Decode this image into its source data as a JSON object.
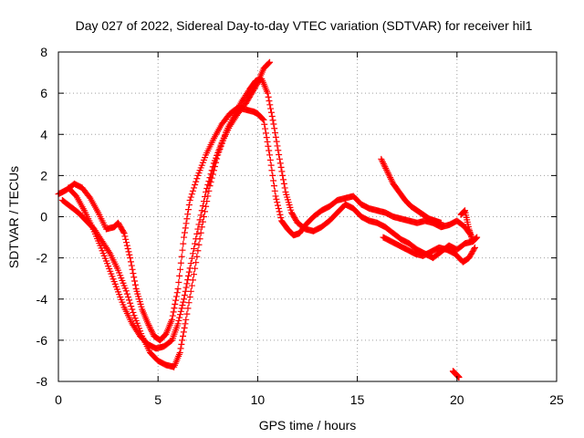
{
  "chart_data": {
    "type": "scatter",
    "title": "Day 027 of 2022, Sidereal Day-to-day VTEC variation (SDTVAR) for receiver hil1",
    "xlabel": "GPS time / hours",
    "ylabel": "SDTVAR / TECUs",
    "xlim": [
      0,
      25
    ],
    "ylim": [
      -8,
      8
    ],
    "xticks": [
      0,
      5,
      10,
      15,
      20,
      25
    ],
    "yticks": [
      -8,
      -6,
      -4,
      -2,
      0,
      2,
      4,
      6,
      8
    ],
    "xtick_labels": [
      "0",
      "5",
      "10",
      "15",
      "20",
      "25"
    ],
    "ytick_labels": [
      "-8",
      "-6",
      "-4",
      "-2",
      "0",
      "2",
      "4",
      "6",
      "8"
    ],
    "grid": true,
    "marker": "+",
    "color": "#ff0000",
    "series": [
      {
        "name": "track-a",
        "x": [
          0.0,
          0.4,
          0.8,
          1.2,
          1.6,
          2.0,
          2.4,
          2.8,
          3.0,
          3.3,
          3.6,
          3.9,
          4.2,
          4.5,
          4.8,
          5.1,
          5.4,
          5.7,
          6.0,
          6.3,
          6.6,
          7.0,
          7.4,
          7.8,
          8.2,
          8.6,
          9.0,
          9.4,
          9.8,
          10.0,
          10.3,
          10.6,
          10.9,
          11.2,
          11.5,
          11.8,
          12.1,
          12.4,
          12.8,
          13.2,
          13.6,
          14.0,
          14.4,
          14.8,
          15.2,
          15.6,
          16.0,
          16.4,
          16.8,
          17.2,
          17.6,
          18.0,
          18.4,
          18.8,
          19.2,
          19.6,
          20.0,
          20.4,
          20.7
        ],
        "y": [
          1.1,
          1.3,
          1.6,
          1.4,
          0.9,
          0.2,
          -0.6,
          -0.5,
          -0.3,
          -0.8,
          -2.0,
          -3.5,
          -4.5,
          -5.2,
          -5.8,
          -6.0,
          -5.7,
          -5.0,
          -3.5,
          -1.0,
          0.8,
          2.0,
          3.0,
          3.8,
          4.5,
          5.0,
          5.3,
          5.2,
          5.1,
          5.0,
          4.7,
          3.0,
          1.0,
          -0.2,
          -0.6,
          -0.9,
          -0.8,
          -0.4,
          0.0,
          0.3,
          0.5,
          0.8,
          0.9,
          1.0,
          0.6,
          0.4,
          0.3,
          0.2,
          0.0,
          -0.1,
          -0.2,
          -0.3,
          -0.2,
          -0.3,
          -0.5,
          -0.4,
          -0.2,
          -0.5,
          -0.9
        ]
      },
      {
        "name": "track-b",
        "x": [
          0.2,
          0.6,
          1.0,
          1.4,
          1.8,
          2.2,
          2.6,
          3.0,
          3.4,
          3.8,
          4.2,
          4.6,
          5.0,
          5.4,
          5.8,
          6.1,
          6.4,
          6.8,
          7.2,
          7.6,
          8.0,
          8.4,
          8.8,
          9.2,
          9.6,
          9.9,
          10.2,
          10.5,
          10.8,
          11.1,
          11.4,
          11.7,
          12.0,
          12.4,
          12.8,
          13.2,
          13.6,
          14.0,
          14.4,
          14.8,
          15.2,
          15.6,
          16.0,
          16.4,
          16.8,
          17.2,
          17.6,
          18.0,
          18.4,
          18.8,
          19.2,
          19.6,
          20.0,
          20.4,
          20.8
        ],
        "y": [
          0.8,
          0.5,
          0.2,
          -0.2,
          -0.6,
          -1.2,
          -1.8,
          -2.6,
          -3.6,
          -4.8,
          -5.8,
          -6.6,
          -7.0,
          -7.2,
          -7.3,
          -6.6,
          -5.0,
          -2.8,
          -0.5,
          1.5,
          3.0,
          4.1,
          4.9,
          5.6,
          6.2,
          6.6,
          6.7,
          6.0,
          4.5,
          2.8,
          1.2,
          0.2,
          -0.3,
          -0.6,
          -0.7,
          -0.5,
          -0.2,
          0.2,
          0.6,
          0.4,
          0.0,
          -0.2,
          -0.3,
          -0.5,
          -0.8,
          -1.1,
          -1.3,
          -1.6,
          -1.8,
          -2.0,
          -1.7,
          -1.4,
          -1.6,
          -1.3,
          -1.2
        ]
      },
      {
        "name": "track-c",
        "x": [
          0.5,
          0.9,
          1.3,
          1.7,
          2.1,
          2.5,
          2.9,
          3.3,
          3.7,
          4.1,
          4.5,
          4.9,
          5.3,
          5.7,
          6.0,
          6.3,
          6.6,
          7.0,
          7.4,
          7.8,
          8.2,
          8.6,
          9.0,
          9.4,
          9.7,
          10.0,
          10.3,
          10.6
        ],
        "y": [
          1.4,
          1.0,
          0.3,
          -0.5,
          -1.4,
          -2.4,
          -3.4,
          -4.4,
          -5.2,
          -5.8,
          -6.2,
          -6.4,
          -6.3,
          -6.0,
          -5.2,
          -4.0,
          -2.5,
          -0.6,
          1.2,
          2.6,
          3.6,
          4.4,
          5.0,
          5.5,
          6.0,
          6.5,
          7.2,
          7.5
        ]
      },
      {
        "name": "track-d",
        "x": [
          16.2,
          16.5,
          16.8,
          17.1,
          17.4,
          17.7,
          18.0,
          18.3,
          18.6,
          18.9,
          19.2
        ],
        "y": [
          2.8,
          2.2,
          1.6,
          1.2,
          0.8,
          0.5,
          0.3,
          0.1,
          -0.1,
          -0.2,
          -0.3
        ]
      },
      {
        "name": "track-e",
        "x": [
          16.3,
          16.7,
          17.1,
          17.5,
          17.9,
          18.3,
          18.7,
          19.1,
          19.5,
          19.9,
          20.3,
          20.6,
          20.9
        ],
        "y": [
          -1.0,
          -1.2,
          -1.4,
          -1.6,
          -1.8,
          -1.9,
          -1.7,
          -1.5,
          -1.6,
          -1.8,
          -2.2,
          -2.0,
          -1.5
        ]
      },
      {
        "name": "track-f",
        "x": [
          19.8,
          19.9,
          20.0,
          20.1
        ],
        "y": [
          -7.5,
          -7.6,
          -7.7,
          -7.8
        ]
      },
      {
        "name": "track-g",
        "x": [
          20.2,
          20.4,
          20.6,
          20.8,
          21.0
        ],
        "y": [
          0.1,
          0.3,
          -0.6,
          -1.2,
          -1.0
        ]
      }
    ]
  }
}
